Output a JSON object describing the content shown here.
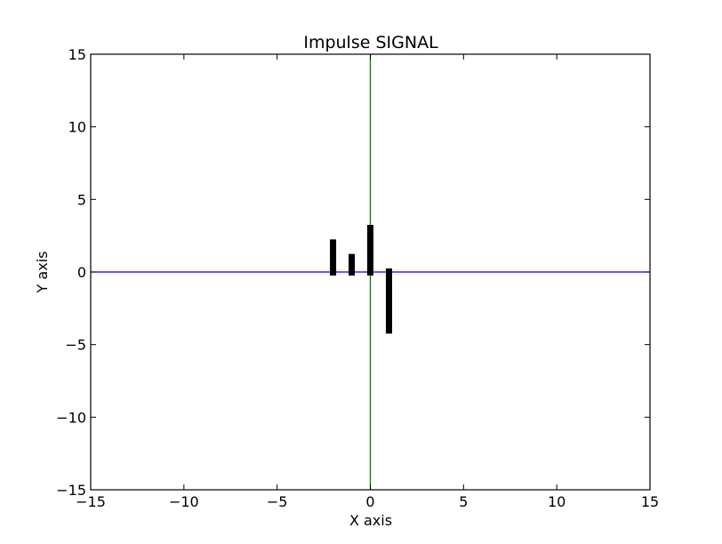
{
  "chart_data": {
    "type": "bar",
    "title": "Impulse SIGNAL",
    "xlabel": "X axis",
    "ylabel": "Y axis",
    "xlim": [
      -15,
      15
    ],
    "ylim": [
      -15,
      15
    ],
    "x_ticks": [
      -15,
      -10,
      -5,
      0,
      5,
      10,
      15
    ],
    "y_ticks": [
      -15,
      -10,
      -5,
      0,
      5,
      10,
      15
    ],
    "x_tick_labels": [
      "−15",
      "−10",
      "−5",
      "0",
      "5",
      "10",
      "15"
    ],
    "y_tick_labels": [
      "−15",
      "−10",
      "−5",
      "0",
      "5",
      "10",
      "15"
    ],
    "impulses": [
      {
        "x": -2,
        "y": 2
      },
      {
        "x": -1,
        "y": 1
      },
      {
        "x": 0,
        "y": 3
      },
      {
        "x": 1,
        "y": -4
      }
    ],
    "reference_lines": [
      {
        "orientation": "horizontal",
        "value": 0,
        "color": "#0000ff"
      },
      {
        "orientation": "vertical",
        "value": 0,
        "color": "#008000"
      }
    ],
    "grid": false,
    "impulse_color": "#000000"
  }
}
